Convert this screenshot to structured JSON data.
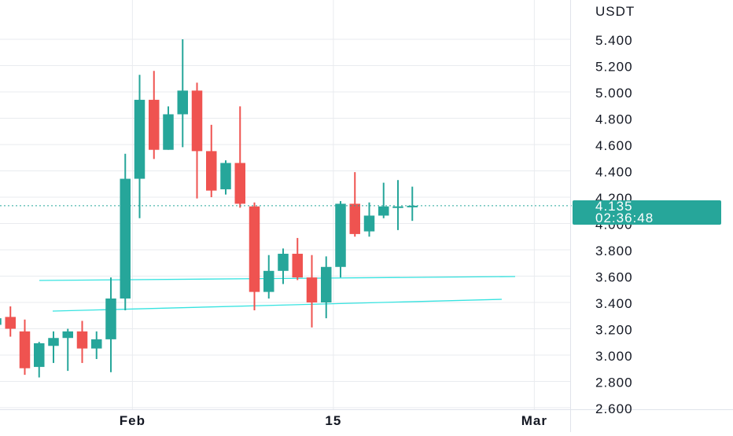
{
  "colors": {
    "up": "#26a69a",
    "down": "#ef5350",
    "grid": "#e9ebef",
    "axis_text": "#131722",
    "price_line": "#26a69a",
    "trendline": "#36e3e0",
    "background": "#ffffff"
  },
  "chart_data": {
    "type": "candlestick",
    "currency_label": "USDT",
    "y_ticks": [
      {
        "value": 5.4,
        "label": "5.400"
      },
      {
        "value": 5.2,
        "label": "5.200"
      },
      {
        "value": 5.0,
        "label": "5.000"
      },
      {
        "value": 4.8,
        "label": "4.800"
      },
      {
        "value": 4.6,
        "label": "4.600"
      },
      {
        "value": 4.4,
        "label": "4.400"
      },
      {
        "value": 4.2,
        "label": "4.200"
      },
      {
        "value": 4.0,
        "label": "4.000"
      },
      {
        "value": 3.8,
        "label": "3.800"
      },
      {
        "value": 3.6,
        "label": "3.600"
      },
      {
        "value": 3.4,
        "label": "3.400"
      },
      {
        "value": 3.2,
        "label": "3.200"
      },
      {
        "value": 3.0,
        "label": "3.000"
      },
      {
        "value": 2.8,
        "label": "2.800"
      },
      {
        "value": 2.6,
        "label": "2.600"
      }
    ],
    "x_labels": [
      {
        "index": 9.5,
        "label": "Feb"
      },
      {
        "index": 23.5,
        "label": "15"
      },
      {
        "index": 37.5,
        "label": "Mar"
      }
    ],
    "vertical_gridlines_at_index": [
      9.5,
      23.5,
      37.5
    ],
    "y_range": [
      2.6,
      5.5
    ],
    "last_price": {
      "value": 4.135,
      "label": "4.135",
      "countdown": "02:36:48"
    },
    "candles": [
      {
        "o": 3.23,
        "h": 3.37,
        "l": 3.12,
        "c": 3.28
      },
      {
        "o": 3.29,
        "h": 3.37,
        "l": 3.14,
        "c": 3.2
      },
      {
        "o": 3.18,
        "h": 3.27,
        "l": 2.85,
        "c": 2.9
      },
      {
        "o": 2.91,
        "h": 3.1,
        "l": 2.83,
        "c": 3.09
      },
      {
        "o": 3.07,
        "h": 3.18,
        "l": 2.94,
        "c": 3.13
      },
      {
        "o": 3.13,
        "h": 3.2,
        "l": 2.88,
        "c": 3.18
      },
      {
        "o": 3.18,
        "h": 3.26,
        "l": 2.94,
        "c": 3.05
      },
      {
        "o": 3.05,
        "h": 3.18,
        "l": 2.97,
        "c": 3.12
      },
      {
        "o": 3.12,
        "h": 3.59,
        "l": 2.87,
        "c": 3.43
      },
      {
        "o": 3.43,
        "h": 4.53,
        "l": 3.34,
        "c": 4.34
      },
      {
        "o": 4.34,
        "h": 5.13,
        "l": 4.04,
        "c": 4.94
      },
      {
        "o": 4.94,
        "h": 5.16,
        "l": 4.49,
        "c": 4.56
      },
      {
        "o": 4.56,
        "h": 4.89,
        "l": 4.56,
        "c": 4.83
      },
      {
        "o": 4.83,
        "h": 5.4,
        "l": 4.58,
        "c": 5.01
      },
      {
        "o": 5.01,
        "h": 5.07,
        "l": 4.19,
        "c": 4.55
      },
      {
        "o": 4.55,
        "h": 4.75,
        "l": 4.2,
        "c": 4.25
      },
      {
        "o": 4.26,
        "h": 4.48,
        "l": 4.22,
        "c": 4.46
      },
      {
        "o": 4.46,
        "h": 4.89,
        "l": 4.12,
        "c": 4.15
      },
      {
        "o": 4.13,
        "h": 4.16,
        "l": 3.34,
        "c": 3.48
      },
      {
        "o": 3.48,
        "h": 3.76,
        "l": 3.43,
        "c": 3.64
      },
      {
        "o": 3.64,
        "h": 3.81,
        "l": 3.54,
        "c": 3.77
      },
      {
        "o": 3.77,
        "h": 3.89,
        "l": 3.57,
        "c": 3.59
      },
      {
        "o": 3.59,
        "h": 3.76,
        "l": 3.21,
        "c": 3.4
      },
      {
        "o": 3.4,
        "h": 3.75,
        "l": 3.28,
        "c": 3.67
      },
      {
        "o": 3.67,
        "h": 4.17,
        "l": 3.59,
        "c": 4.15
      },
      {
        "o": 4.15,
        "h": 4.39,
        "l": 3.9,
        "c": 3.92
      },
      {
        "o": 3.94,
        "h": 4.16,
        "l": 3.9,
        "c": 4.06
      },
      {
        "o": 4.06,
        "h": 4.31,
        "l": 4.04,
        "c": 4.13
      },
      {
        "o": 4.13,
        "h": 4.33,
        "l": 3.95,
        "c": 4.13
      },
      {
        "o": 4.13,
        "h": 4.28,
        "l": 4.02,
        "c": 4.135
      }
    ]
  }
}
